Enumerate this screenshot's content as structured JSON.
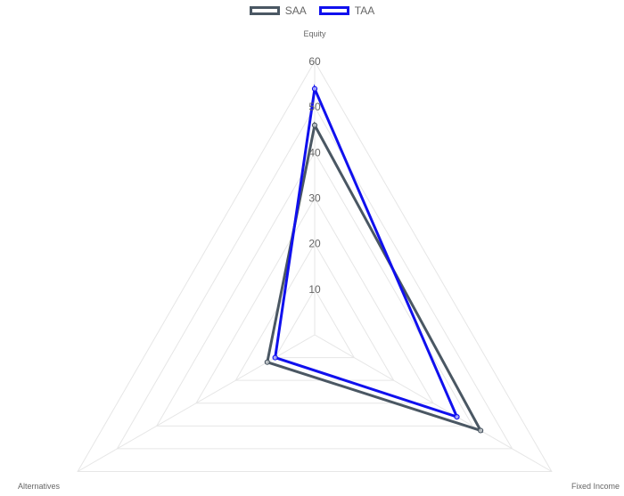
{
  "chart_data": {
    "type": "radar",
    "labels": [
      "Equity",
      "Fixed Income",
      "Alternatives"
    ],
    "series": [
      {
        "name": "SAA",
        "values": [
          46,
          42,
          12
        ],
        "color": "#4a5763"
      },
      {
        "name": "TAA",
        "values": [
          54,
          36,
          10
        ],
        "color": "#1010ee"
      }
    ],
    "r_ticks": [
      10,
      20,
      30,
      40,
      50,
      60
    ],
    "r_range": [
      0,
      60
    ],
    "grid": true,
    "legend_position": "top-center",
    "grid_color": "#e6e6e6"
  }
}
